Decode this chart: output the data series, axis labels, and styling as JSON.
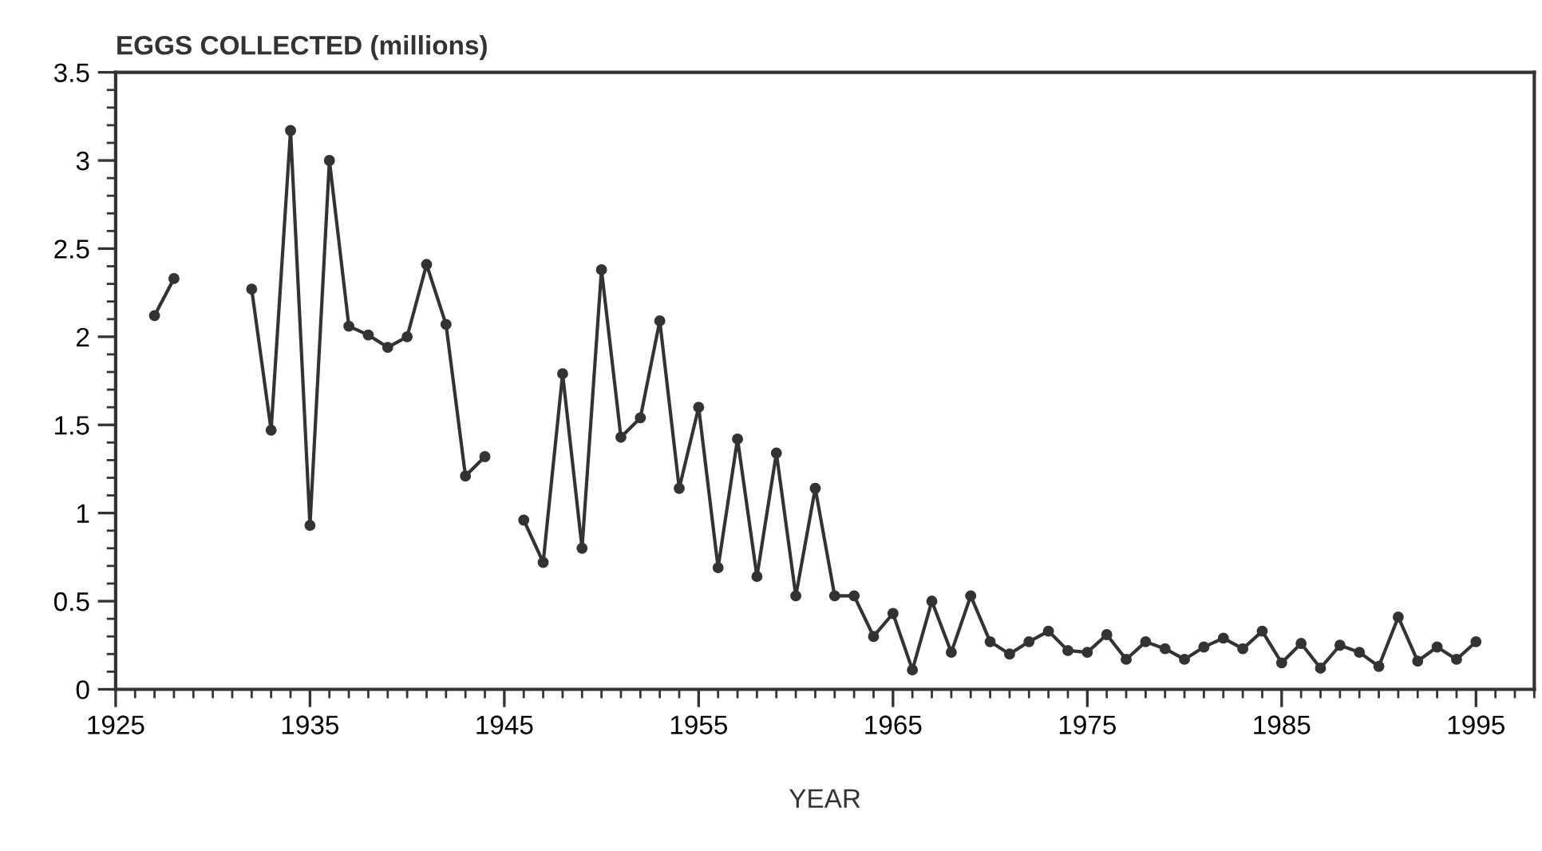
{
  "chart_data": {
    "type": "line",
    "ylabel": "EGGS COLLECTED (millions)",
    "xlabel": "YEAR",
    "x": [
      1927,
      1928,
      1929,
      1932,
      1933,
      1934,
      1935,
      1936,
      1937,
      1938,
      1939,
      1940,
      1941,
      1942,
      1943,
      1944,
      1945,
      1946,
      1947,
      1948,
      1949,
      1950,
      1951,
      1952,
      1953,
      1954,
      1955,
      1956,
      1957,
      1958,
      1959,
      1960,
      1961,
      1962,
      1963,
      1964,
      1965,
      1966,
      1967,
      1968,
      1969,
      1970,
      1971,
      1972,
      1973,
      1974,
      1975,
      1976,
      1977,
      1978,
      1979,
      1980,
      1981,
      1982,
      1983,
      1984,
      1985,
      1986,
      1987,
      1988,
      1989,
      1990,
      1991,
      1992,
      1993,
      1994,
      1995
    ],
    "series": [
      {
        "color": "#333333",
        "values": [
          2.12,
          2.33,
          null,
          2.27,
          1.47,
          3.17,
          0.93,
          3.0,
          2.06,
          2.01,
          1.94,
          2.0,
          2.41,
          2.07,
          1.21,
          1.32,
          null,
          0.96,
          0.72,
          1.79,
          0.8,
          2.38,
          1.43,
          1.54,
          2.09,
          1.14,
          1.6,
          0.69,
          1.42,
          0.64,
          1.34,
          0.53,
          1.14,
          0.53,
          0.53,
          0.3,
          0.43,
          0.11,
          0.5,
          0.21,
          0.53,
          0.27,
          0.2,
          0.27,
          0.33,
          0.22,
          0.21,
          0.31,
          0.17,
          0.27,
          0.23,
          0.17,
          0.24,
          0.29,
          0.23,
          0.33,
          0.15,
          0.26,
          0.12,
          0.25,
          0.21,
          0.13,
          0.41,
          0.16,
          0.24,
          0.17,
          0.27
        ]
      }
    ],
    "xlim": [
      1925,
      1998
    ],
    "xticks": [
      1925,
      1935,
      1945,
      1955,
      1965,
      1975,
      1985,
      1995
    ],
    "ylim": [
      0,
      3.5
    ],
    "yticks": [
      0,
      0.5,
      1,
      1.5,
      2,
      2.5,
      3,
      3.5
    ],
    "marker": "circle",
    "line_style": "solid",
    "grid": false,
    "legend": false
  }
}
